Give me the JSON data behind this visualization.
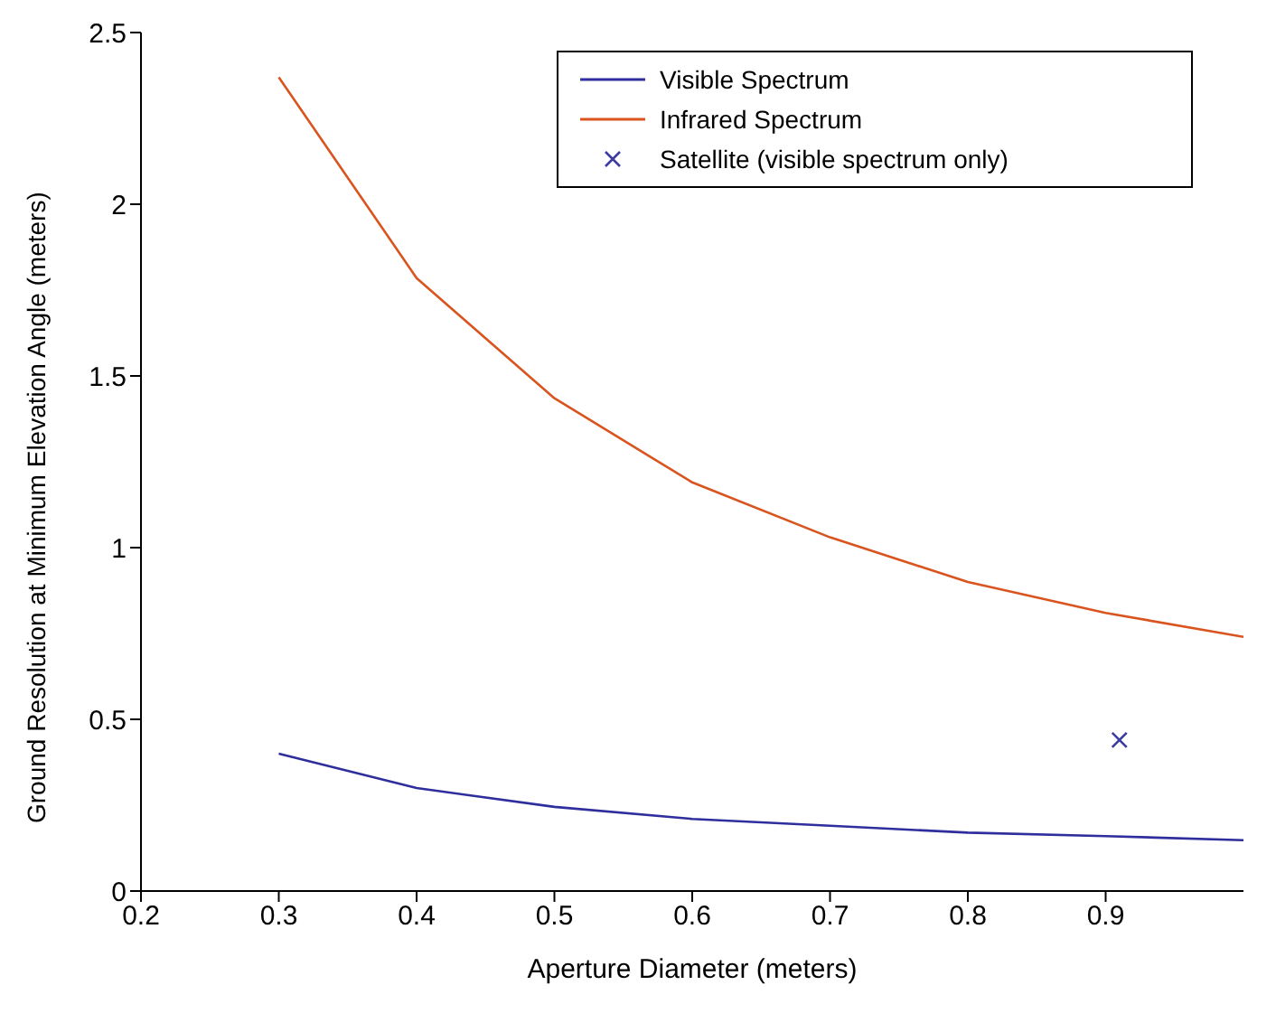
{
  "chart_data": {
    "type": "line",
    "xlabel": "Aperture Diameter (meters)",
    "ylabel": "Ground Resolution at Minimum Elevation Angle (meters)",
    "x": [
      0.3,
      0.4,
      0.5,
      0.6,
      0.7,
      0.8,
      0.9,
      1.0
    ],
    "series": [
      {
        "name": "Visible Spectrum",
        "color": "#2e2e9c",
        "values": [
          0.4,
          0.3,
          0.245,
          0.21,
          0.19,
          0.17,
          0.16,
          0.148
        ]
      },
      {
        "name": "Infrared Spectrum",
        "color": "#d9541e",
        "values": [
          2.37,
          1.785,
          1.435,
          1.19,
          1.03,
          0.9,
          0.81,
          0.74
        ]
      },
      {
        "name": "Satellite (visible spectrum only)",
        "type": "scatter",
        "color": "#3b3ba0",
        "x": [
          0.91
        ],
        "values": [
          0.44
        ],
        "marker": "cross"
      }
    ],
    "xlim": [
      0.2,
      1.0
    ],
    "xticks": [
      0.2,
      0.3,
      0.4,
      0.5,
      0.6,
      0.7,
      0.8,
      0.9
    ],
    "ylim": [
      0,
      2.5
    ],
    "yticks": [
      0,
      0.5,
      1,
      1.5,
      2,
      2.5
    ],
    "grid": false,
    "legend": "top right"
  }
}
